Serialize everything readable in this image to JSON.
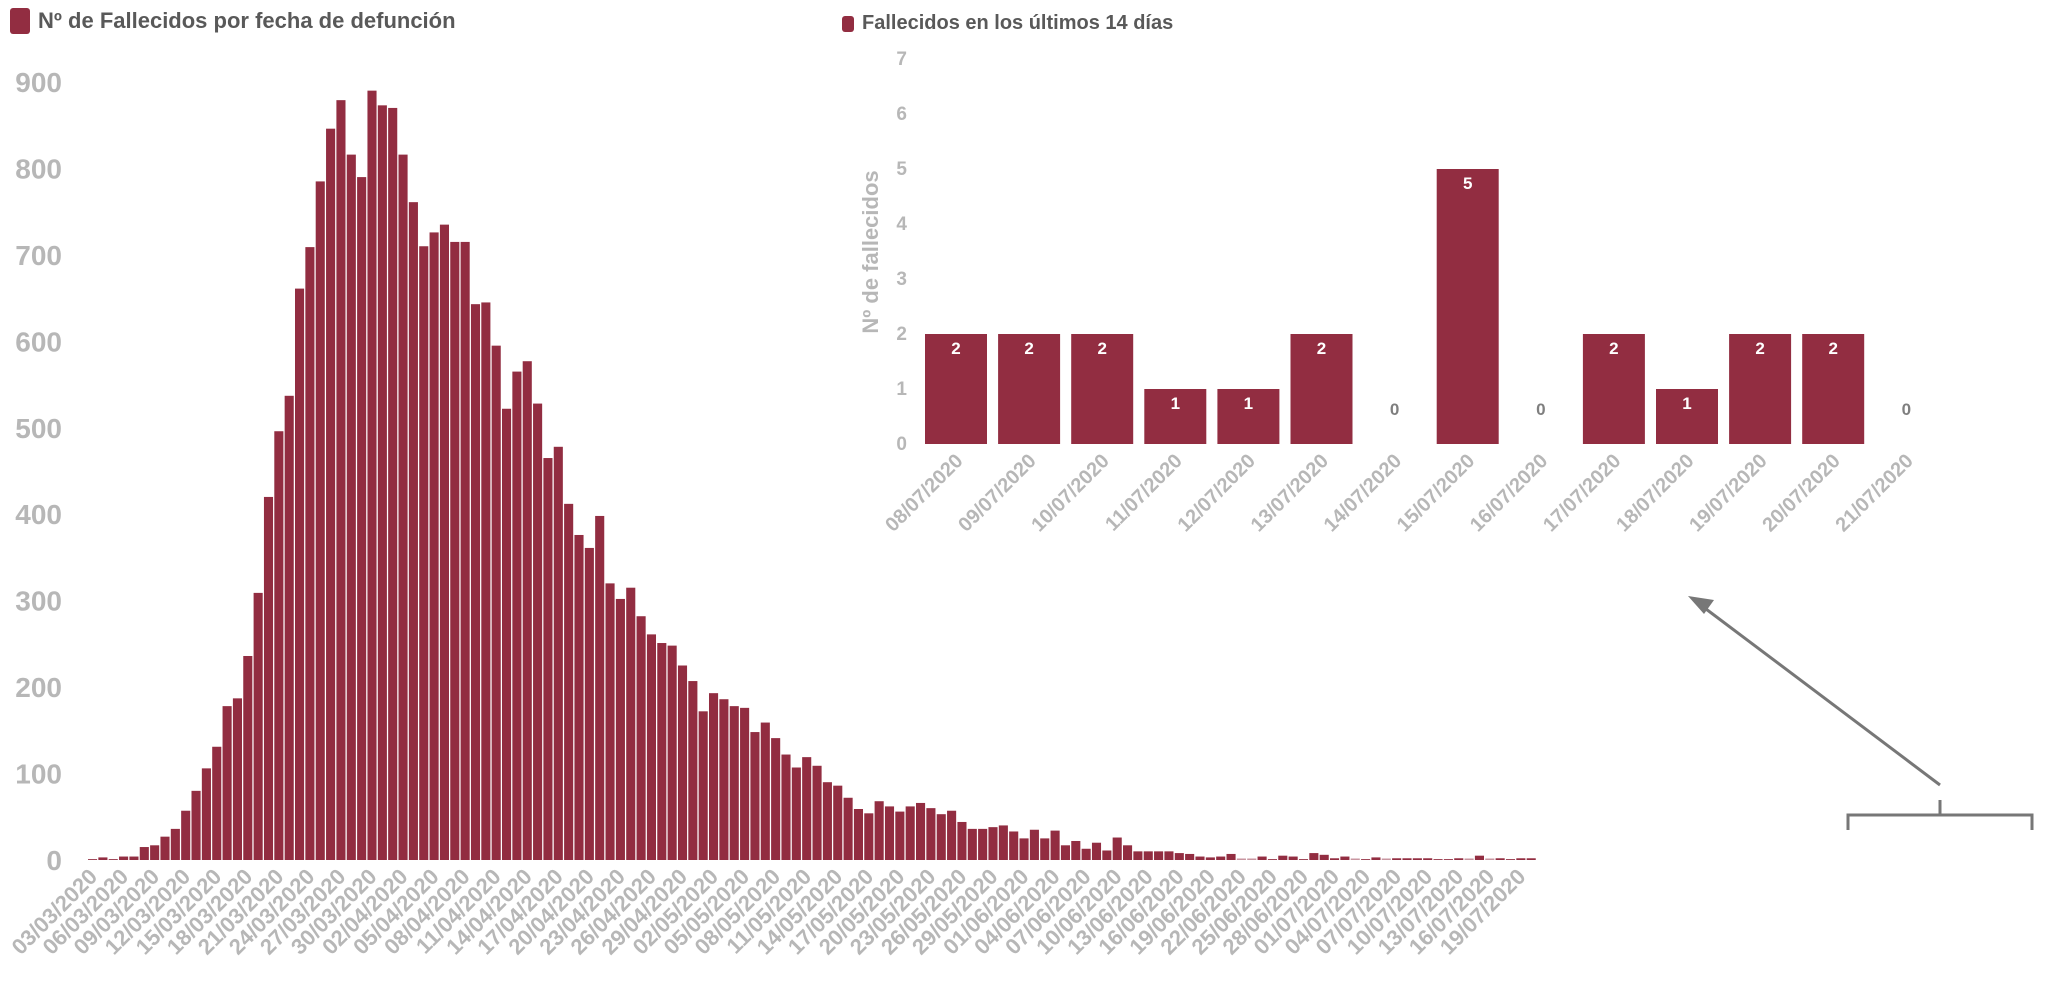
{
  "colors": {
    "bar": "#922d41",
    "axis_text": "#b7b7b7",
    "annotation": "#777777",
    "label_text": "#ffffff",
    "zero_label": "#7f7f7f"
  },
  "chart_data": [
    {
      "type": "bar",
      "title": "Nº de Fallecidos por fecha de defunción",
      "xlabel": "",
      "ylabel": "",
      "ylim": [
        0,
        900
      ],
      "yticks": [
        0,
        100,
        200,
        300,
        400,
        500,
        600,
        700,
        800,
        900
      ],
      "grid": false,
      "legend": "top-left",
      "start_date": "03/03/2020",
      "tick_every": 3,
      "x_tick_labels": [
        "03/03/2020",
        "06/03/2020",
        "09/03/2020",
        "12/03/2020",
        "15/03/2020",
        "18/03/2020",
        "21/03/2020",
        "24/03/2020",
        "27/03/2020",
        "30/03/2020",
        "02/04/2020",
        "05/04/2020",
        "08/04/2020",
        "11/04/2020",
        "14/04/2020",
        "17/04/2020",
        "20/04/2020",
        "23/04/2020",
        "26/04/2020",
        "29/04/2020",
        "02/05/2020",
        "05/05/2020",
        "08/05/2020",
        "11/05/2020",
        "14/05/2020",
        "17/05/2020",
        "20/05/2020",
        "23/05/2020",
        "26/05/2020",
        "29/05/2020",
        "01/06/2020",
        "04/06/2020",
        "07/06/2020",
        "10/06/2020",
        "13/06/2020",
        "16/06/2020",
        "19/06/2020",
        "22/06/2020",
        "25/06/2020",
        "28/06/2020",
        "01/07/2020",
        "04/07/2020",
        "07/07/2020",
        "10/07/2020",
        "13/07/2020",
        "16/07/2020",
        "19/07/2020"
      ],
      "values": [
        1,
        3,
        1,
        4,
        4,
        15,
        17,
        27,
        36,
        57,
        80,
        106,
        131,
        178,
        187,
        236,
        309,
        420,
        496,
        537,
        661,
        709,
        785,
        846,
        879,
        816,
        790,
        890,
        873,
        870,
        816,
        761,
        710,
        726,
        735,
        715,
        715,
        643,
        645,
        595,
        522,
        565,
        577,
        528,
        465,
        478,
        412,
        376,
        361,
        398,
        320,
        302,
        315,
        282,
        261,
        251,
        248,
        225,
        207,
        172,
        193,
        186,
        178,
        176,
        148,
        159,
        141,
        122,
        107,
        119,
        109,
        90,
        86,
        72,
        59,
        54,
        68,
        62,
        56,
        62,
        66,
        60,
        53,
        57,
        44,
        36,
        36,
        38,
        40,
        33,
        25,
        35,
        25,
        34,
        17,
        22,
        13,
        20,
        11,
        26,
        17,
        10,
        10,
        10,
        10,
        8,
        7,
        4,
        3,
        4,
        7,
        0,
        0,
        4,
        1,
        5,
        4,
        1,
        8,
        6,
        2,
        4,
        0,
        1,
        3,
        0,
        2,
        2,
        2,
        2,
        1,
        1,
        2,
        0,
        5,
        0,
        2,
        1,
        2,
        2
      ]
    },
    {
      "type": "bar",
      "title": "Fallecidos en los últimos 14 días",
      "xlabel": "",
      "ylabel": "Nº de fallecidos",
      "ylim": [
        0,
        7
      ],
      "yticks": [
        0,
        1,
        2,
        3,
        4,
        5,
        6,
        7
      ],
      "grid": false,
      "legend": "top-left",
      "categories": [
        "08/07/2020",
        "09/07/2020",
        "10/07/2020",
        "11/07/2020",
        "12/07/2020",
        "13/07/2020",
        "14/07/2020",
        "15/07/2020",
        "16/07/2020",
        "17/07/2020",
        "18/07/2020",
        "19/07/2020",
        "20/07/2020",
        "21/07/2020"
      ],
      "values": [
        2,
        2,
        2,
        1,
        1,
        2,
        0,
        5,
        0,
        2,
        1,
        2,
        2,
        0
      ]
    }
  ]
}
